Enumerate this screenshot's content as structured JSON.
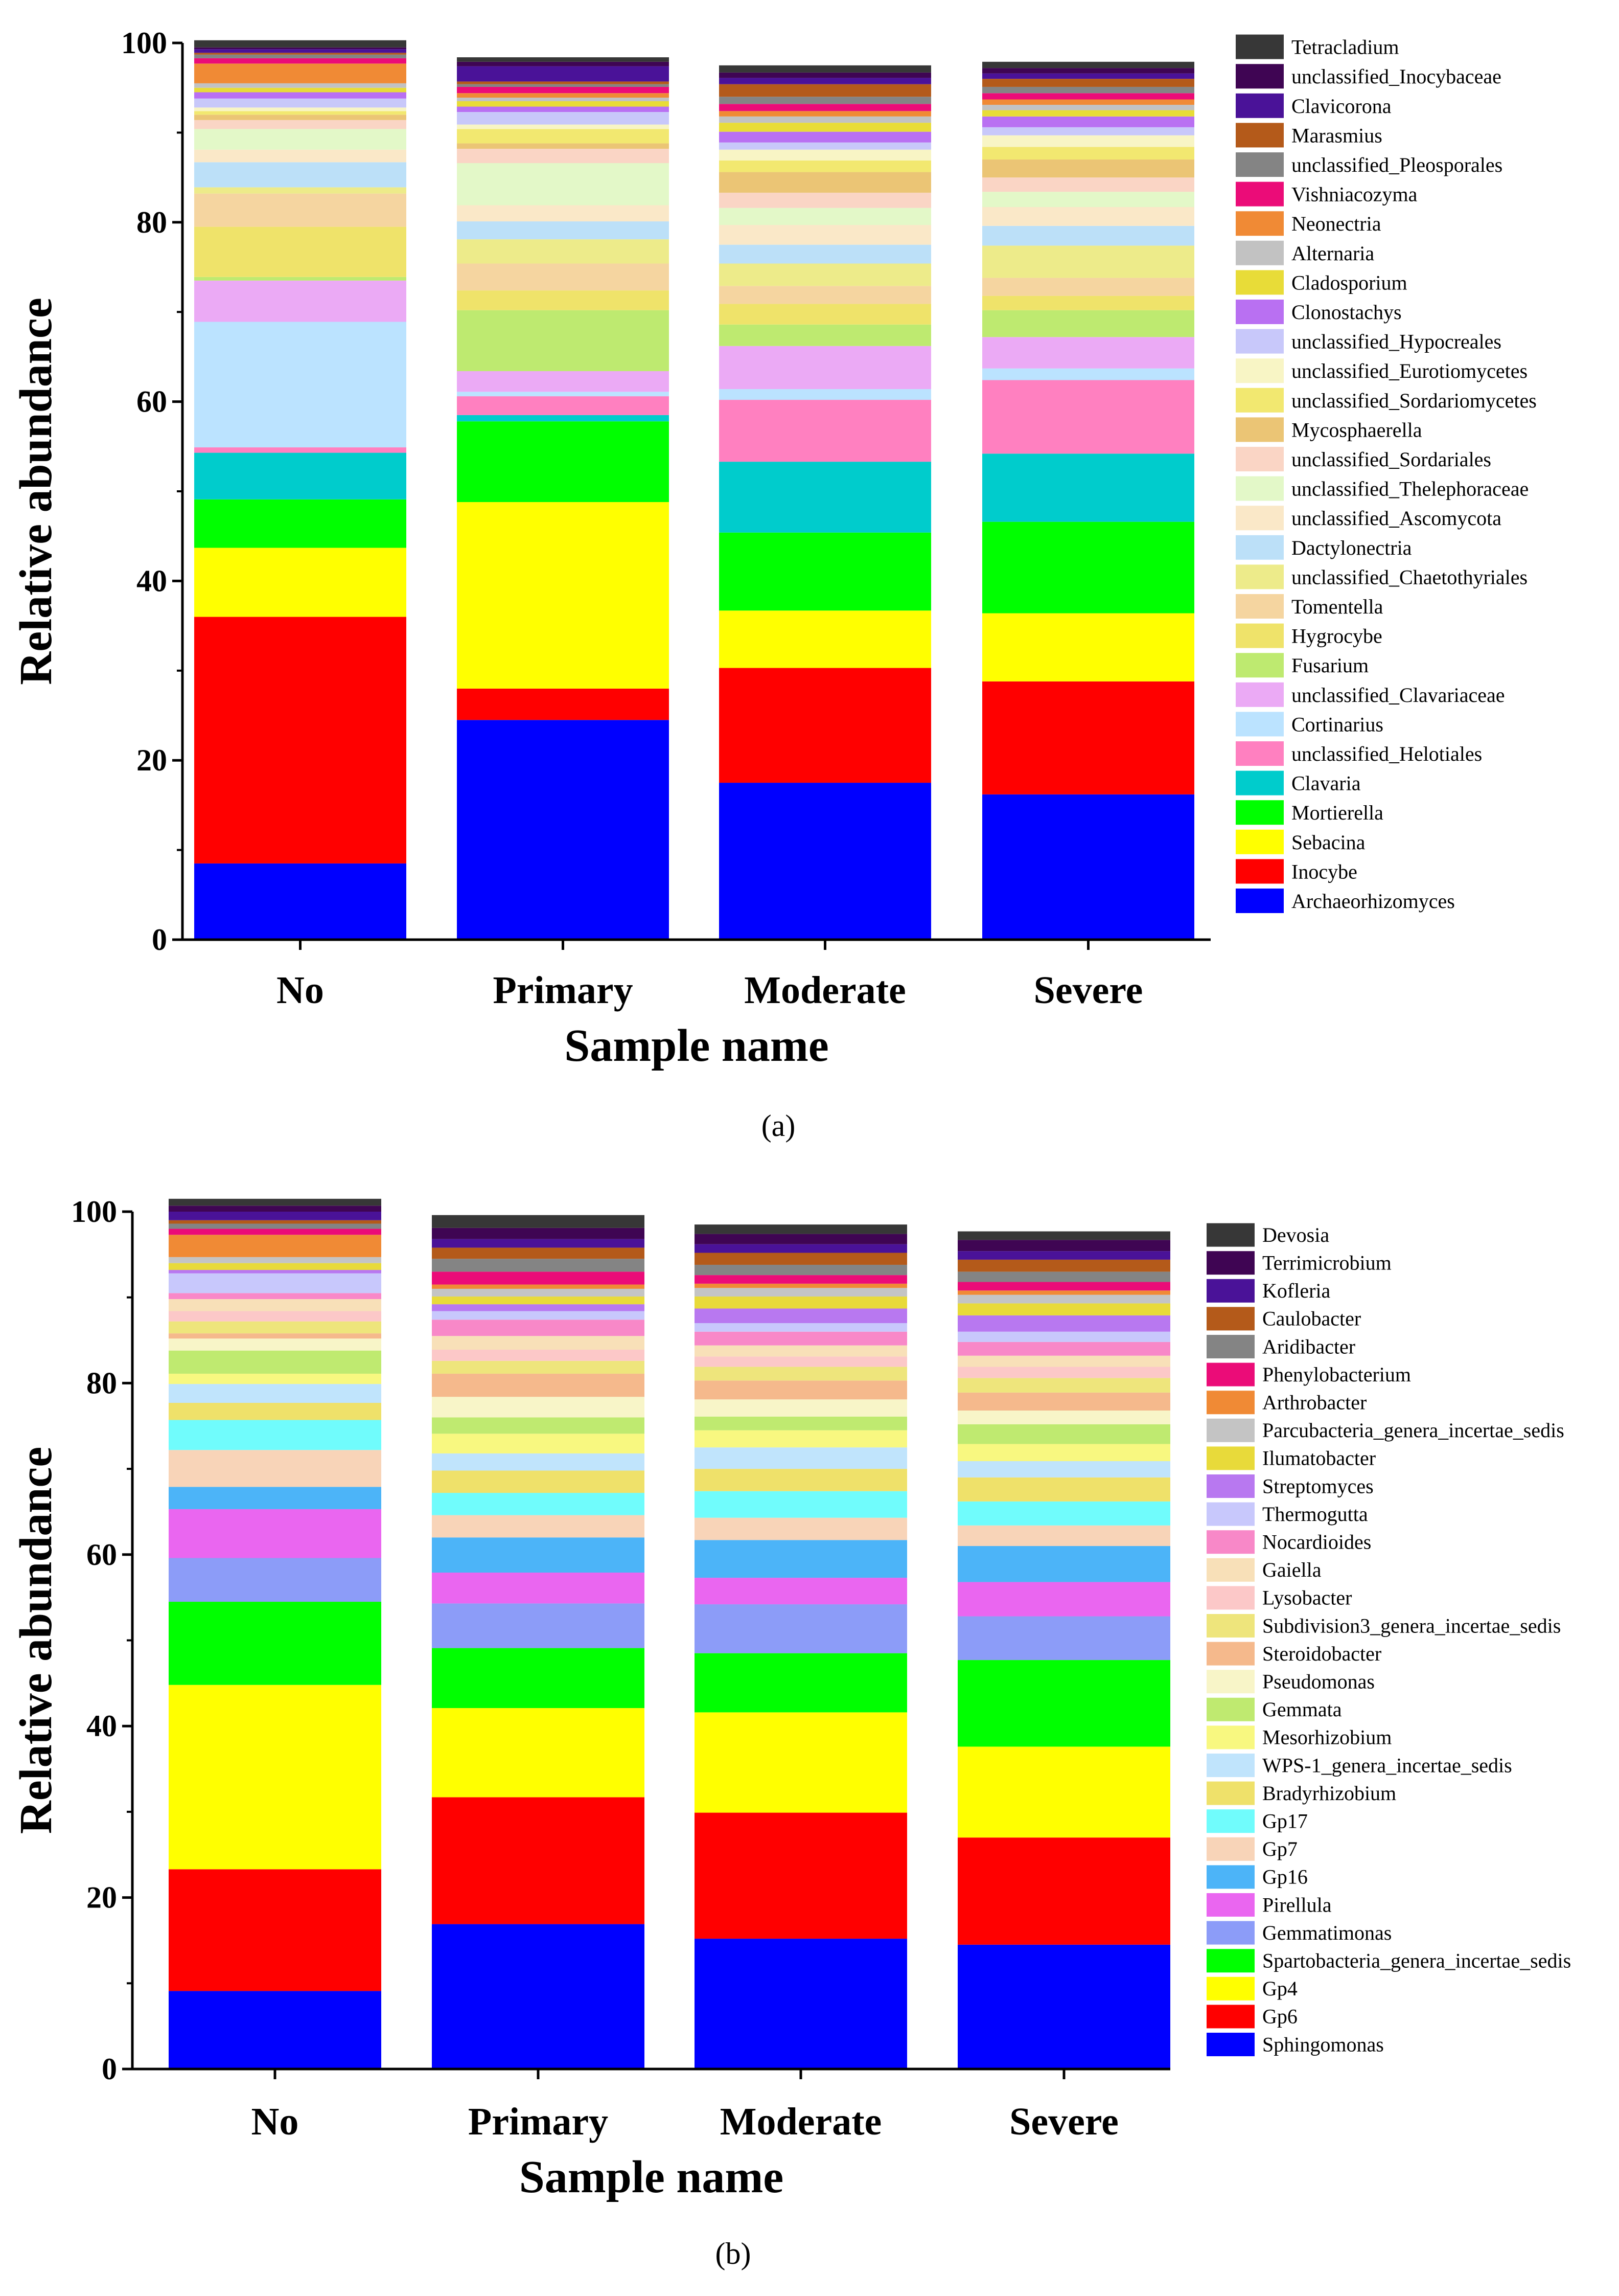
{
  "figure": {
    "panels": [
      {
        "label": "(a)"
      },
      {
        "label": "(b)"
      }
    ]
  },
  "chart_data": [
    {
      "type": "bar",
      "stacked": true,
      "panel_label": "(a)",
      "title": "",
      "xlabel": "Sample name",
      "ylabel": "Relative abundance",
      "ylim": [
        0,
        100
      ],
      "yticks": [
        "0",
        "20",
        "40",
        "60",
        "80",
        "100"
      ],
      "categories": [
        "No",
        "Primary",
        "Moderate",
        "Severe"
      ],
      "legend_position": "right",
      "series": [
        {
          "name": "Archaeorhizomyces",
          "color": "#0000FF",
          "values": [
            8.5,
            24.5,
            17.5,
            16.2
          ]
        },
        {
          "name": "Inocybe",
          "color": "#FF0000",
          "values": [
            27.5,
            3.5,
            12.8,
            12.6
          ]
        },
        {
          "name": "Sebacina",
          "color": "#FFFF00",
          "values": [
            7.7,
            20.8,
            6.4,
            7.6
          ]
        },
        {
          "name": "Mortierella",
          "color": "#00FF00",
          "values": [
            5.4,
            9.0,
            8.7,
            10.2
          ]
        },
        {
          "name": "Clavaria",
          "color": "#00CCCC",
          "values": [
            5.2,
            0.7,
            7.9,
            7.6
          ]
        },
        {
          "name": "unclassified_Helotiales",
          "color": "#FF80C0",
          "values": [
            0.6,
            2.1,
            6.9,
            8.2
          ]
        },
        {
          "name": "Cortinarius",
          "color": "#BBE3FF",
          "values": [
            14.0,
            0.5,
            1.2,
            1.3
          ]
        },
        {
          "name": "unclassified_Clavariaceae",
          "color": "#EBAAF5",
          "values": [
            4.6,
            2.3,
            4.8,
            3.5
          ]
        },
        {
          "name": "Fusarium",
          "color": "#BEEA70",
          "values": [
            0.4,
            6.8,
            2.4,
            3.0
          ]
        },
        {
          "name": "Hygrocybe",
          "color": "#EFE36A",
          "values": [
            5.6,
            2.2,
            2.3,
            1.6
          ]
        },
        {
          "name": "Tomentella",
          "color": "#F5D5A0",
          "values": [
            3.7,
            3.0,
            2.0,
            2.0
          ]
        },
        {
          "name": "unclassified_Chaetothyriales",
          "color": "#EDEB8A",
          "values": [
            0.7,
            2.7,
            2.5,
            3.6
          ]
        },
        {
          "name": "Dactylonectria",
          "color": "#BCE0F8",
          "values": [
            2.8,
            2.0,
            2.1,
            2.2
          ]
        },
        {
          "name": "unclassified_Ascomycota",
          "color": "#FAE8C8",
          "values": [
            1.4,
            1.8,
            2.2,
            2.1
          ]
        },
        {
          "name": "unclassified_Thelephoraceae",
          "color": "#E3F8C8",
          "values": [
            2.3,
            4.7,
            1.9,
            1.7
          ]
        },
        {
          "name": "unclassified_Sordariales",
          "color": "#FAD5C5",
          "values": [
            1.0,
            1.6,
            1.7,
            1.6
          ]
        },
        {
          "name": "Mycosphaerella",
          "color": "#EBC575",
          "values": [
            0.6,
            0.6,
            2.3,
            2.0
          ]
        },
        {
          "name": "unclassified_Sordariomycetes",
          "color": "#F2E870",
          "values": [
            0.4,
            1.6,
            1.3,
            1.4
          ]
        },
        {
          "name": "unclassified_Eurotiomycetes",
          "color": "#F8F5C5",
          "values": [
            0.4,
            0.5,
            1.2,
            1.3
          ]
        },
        {
          "name": "unclassified_Hypocreales",
          "color": "#C8C8FA",
          "values": [
            1.0,
            1.4,
            0.8,
            0.9
          ]
        },
        {
          "name": "Clonostachys",
          "color": "#B970F2",
          "values": [
            0.7,
            0.6,
            1.2,
            1.2
          ]
        },
        {
          "name": "Cladosporium",
          "color": "#E8DC38",
          "values": [
            0.5,
            0.6,
            1.0,
            0.7
          ]
        },
        {
          "name": "Alternaria",
          "color": "#C2C2C2",
          "values": [
            0.5,
            0.4,
            0.7,
            0.6
          ]
        },
        {
          "name": "Neonectria",
          "color": "#F08A35",
          "values": [
            2.2,
            0.5,
            0.6,
            0.6
          ]
        },
        {
          "name": "Vishniacozyma",
          "color": "#EB0C78",
          "values": [
            0.6,
            0.7,
            0.8,
            0.7
          ]
        },
        {
          "name": "unclassified_Pleosporales",
          "color": "#848484",
          "values": [
            0.4,
            0.3,
            0.8,
            0.7
          ]
        },
        {
          "name": "Marasmius",
          "color": "#B45A1A",
          "values": [
            0.2,
            0.3,
            1.4,
            0.9
          ]
        },
        {
          "name": "Clavicorona",
          "color": "#4A1298",
          "values": [
            0.4,
            1.7,
            0.7,
            0.6
          ]
        },
        {
          "name": "unclassified_Inocybaceae",
          "color": "#3F0553",
          "values": [
            0.2,
            0.5,
            0.6,
            0.6
          ]
        },
        {
          "name": "Tetracladium",
          "color": "#373737",
          "values": [
            0.8,
            0.5,
            0.8,
            0.7
          ]
        }
      ]
    },
    {
      "type": "bar",
      "stacked": true,
      "panel_label": "(b)",
      "title": "",
      "xlabel": "Sample name",
      "ylabel": "Relative abundance",
      "ylim": [
        0,
        100
      ],
      "yticks": [
        "0",
        "20",
        "40",
        "60",
        "80",
        "100"
      ],
      "categories": [
        "No",
        "Primary",
        "Moderate",
        "Severe"
      ],
      "legend_position": "right",
      "series": [
        {
          "name": "Sphingomonas",
          "color": "#0000FF",
          "values": [
            9.1,
            16.9,
            15.2,
            14.5
          ]
        },
        {
          "name": "Gp6",
          "color": "#FF0000",
          "values": [
            14.2,
            14.8,
            14.7,
            12.5
          ]
        },
        {
          "name": "Gp4",
          "color": "#FFFF00",
          "values": [
            21.5,
            10.4,
            11.7,
            10.6
          ]
        },
        {
          "name": "Spartobacteria_genera_incertae_sedis",
          "color": "#00FF00",
          "values": [
            9.7,
            7.0,
            6.9,
            10.1
          ]
        },
        {
          "name": "Gemmatimonas",
          "color": "#8C9CF8",
          "values": [
            5.1,
            5.2,
            5.7,
            5.1
          ]
        },
        {
          "name": "Pirellula",
          "color": "#EA66F0",
          "values": [
            5.7,
            3.6,
            3.1,
            4.0
          ]
        },
        {
          "name": "Gp16",
          "color": "#4CB4F8",
          "values": [
            2.6,
            4.1,
            4.4,
            4.2
          ]
        },
        {
          "name": "Gp7",
          "color": "#F8D4B8",
          "values": [
            4.3,
            2.6,
            2.6,
            2.4
          ]
        },
        {
          "name": "Gp17",
          "color": "#70FCFC",
          "values": [
            3.5,
            2.6,
            3.1,
            2.8
          ]
        },
        {
          "name": "Bradyrhizobium",
          "color": "#EFE16A",
          "values": [
            2.0,
            2.6,
            2.6,
            2.8
          ]
        },
        {
          "name": "WPS-1_genera_incertae_sedis",
          "color": "#C0E4FC",
          "values": [
            2.2,
            2.0,
            2.5,
            1.9
          ]
        },
        {
          "name": "Mesorhizobium",
          "color": "#F8F880",
          "values": [
            1.2,
            2.3,
            2.0,
            2.0
          ]
        },
        {
          "name": "Gemmata",
          "color": "#BFEA70",
          "values": [
            2.7,
            1.9,
            1.6,
            2.3
          ]
        },
        {
          "name": "Pseudomonas",
          "color": "#F8F5C8",
          "values": [
            1.4,
            2.4,
            2.0,
            1.6
          ]
        },
        {
          "name": "Steroidobacter",
          "color": "#F5B98C",
          "values": [
            0.6,
            2.7,
            2.2,
            2.1
          ]
        },
        {
          "name": "Subdivision3_genera_incertae_sedis",
          "color": "#EEE57C",
          "values": [
            1.4,
            1.5,
            1.6,
            1.7
          ]
        },
        {
          "name": "Lysobacter",
          "color": "#FCC8C8",
          "values": [
            1.2,
            1.3,
            1.2,
            1.3
          ]
        },
        {
          "name": "Gaiella",
          "color": "#F8E0B8",
          "values": [
            1.4,
            1.6,
            1.3,
            1.3
          ]
        },
        {
          "name": "Nocardioides",
          "color": "#F888C8",
          "values": [
            0.7,
            1.9,
            1.6,
            1.6
          ]
        },
        {
          "name": "Thermogutta",
          "color": "#C8C8FC",
          "values": [
            2.3,
            1.0,
            1.0,
            1.2
          ]
        },
        {
          "name": "Streptomyces",
          "color": "#B878F0",
          "values": [
            0.4,
            0.8,
            1.7,
            1.9
          ]
        },
        {
          "name": "Ilumatobacter",
          "color": "#E8DA3A",
          "values": [
            0.8,
            0.9,
            1.4,
            1.4
          ]
        },
        {
          "name": "Parcubacteria_genera_incertae_sedis",
          "color": "#C4C4C4",
          "values": [
            0.7,
            0.9,
            1.0,
            1.0
          ]
        },
        {
          "name": "Arthrobacter",
          "color": "#F08A35",
          "values": [
            2.6,
            0.5,
            0.5,
            0.5
          ]
        },
        {
          "name": "Phenylobacterium",
          "color": "#EB0C78",
          "values": [
            0.7,
            1.5,
            1.0,
            1.0
          ]
        },
        {
          "name": "Aridibacter",
          "color": "#848484",
          "values": [
            0.6,
            1.5,
            1.2,
            1.2
          ]
        },
        {
          "name": "Caulobacter",
          "color": "#B45A1A",
          "values": [
            0.4,
            1.3,
            1.4,
            1.4
          ]
        },
        {
          "name": "Kofleria",
          "color": "#4A1298",
          "values": [
            1.0,
            1.0,
            1.0,
            1.0
          ]
        },
        {
          "name": "Terrimicrobium",
          "color": "#3F0553",
          "values": [
            0.7,
            1.3,
            1.2,
            1.3
          ]
        },
        {
          "name": "Devosia",
          "color": "#373737",
          "values": [
            0.8,
            1.5,
            1.1,
            1.0
          ]
        }
      ]
    }
  ]
}
